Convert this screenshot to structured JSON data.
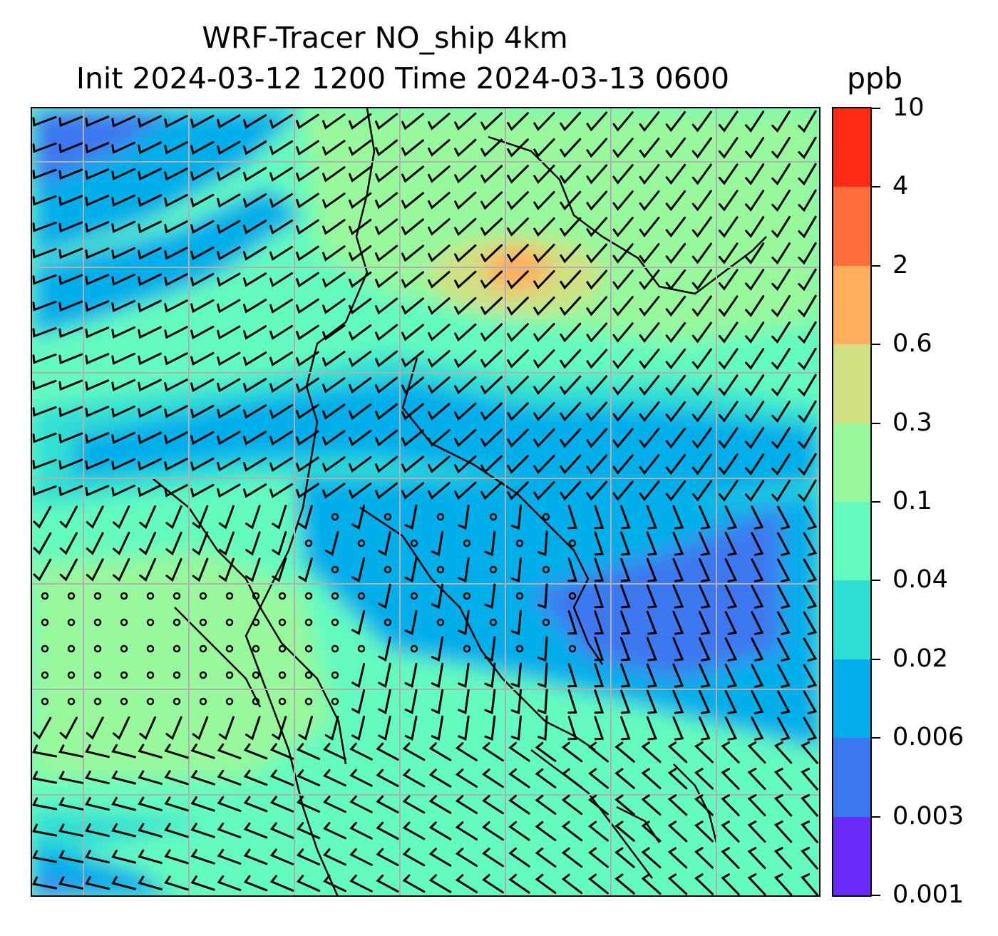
{
  "title": {
    "line1": "WRF-Tracer NO_ship 4km",
    "line2": "Init 2024-03-12 1200 Time 2024-03-13 0600",
    "unit": "ppb"
  },
  "colorbar": {
    "levels": [
      "0.001",
      "0.003",
      "0.006",
      "0.02",
      "0.04",
      "0.1",
      "0.3",
      "0.6",
      "2",
      "4",
      "10"
    ],
    "colors": [
      "#6a2cfb",
      "#3c78f0",
      "#03aeea",
      "#30dfd3",
      "#63fbbf",
      "#97f89c",
      "#d0e082",
      "#ffae5e",
      "#ff6e3a",
      "#ff2b14"
    ]
  },
  "map": {
    "background_color": "#63fbbf",
    "gridlines": true,
    "grid_color": "#b0b0b0",
    "wind_barbs": true,
    "coastlines": true
  }
}
